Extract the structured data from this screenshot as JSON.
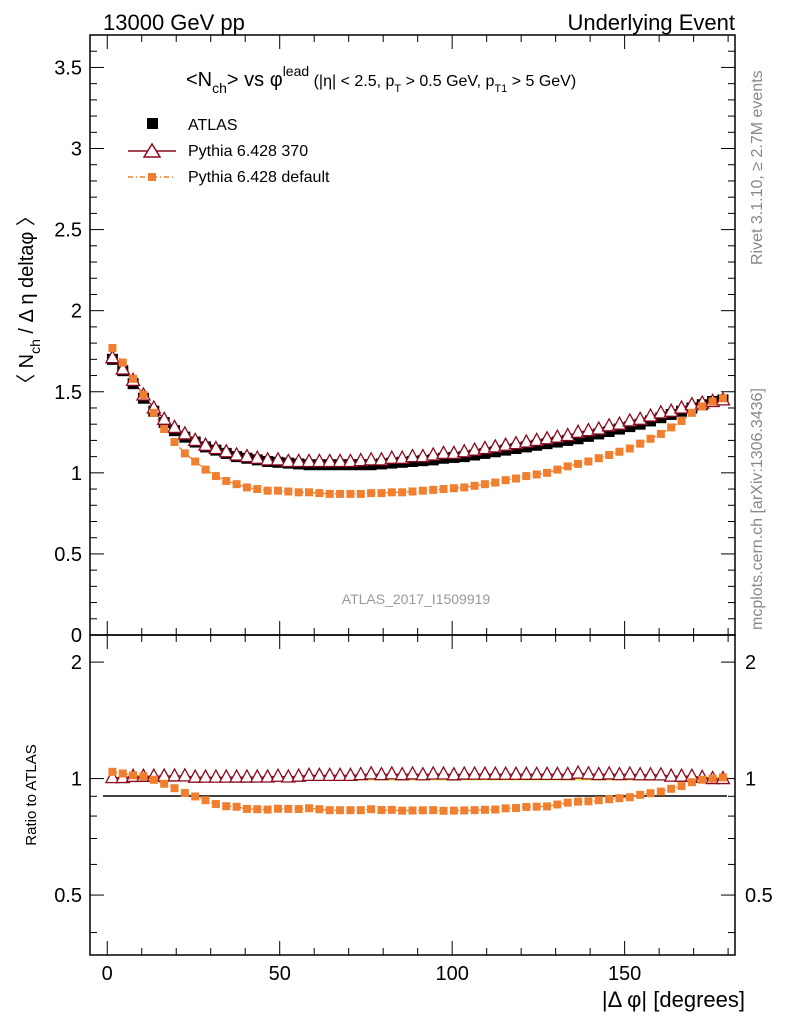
{
  "header": {
    "left": "13000 GeV pp",
    "right": "Underlying Event"
  },
  "side": {
    "rivet": "Rivet 3.1.10, ≥ 2.7M events",
    "mcplots": "mcplots.cern.ch [arXiv:1306.3436]"
  },
  "chart_data": {
    "type": "scatter",
    "title_parts": {
      "a": "<N",
      "a_sub": "ch",
      "b": "> vs φ",
      "b_sup": "lead",
      "c": " (|η| < 2.5, p",
      "c_sub": "T",
      "d": " > 0.5 GeV, p",
      "d_sub": "T1",
      "e": " > 5 GeV)"
    },
    "analysis_label": "ATLAS_2017_I1509919",
    "ylabel_parts": {
      "a": "〈 N",
      "a_sub": "ch",
      "b": " / Δ η deltaφ 〉"
    },
    "ratio_ylabel": "Ratio to ATLAS",
    "xlabel": "|Δ φ| [degrees]",
    "xlim": [
      -5,
      182
    ],
    "ylim": [
      0,
      3.7
    ],
    "ratio_ylim": [
      0.35,
      2.35
    ],
    "x_ticks": [
      "0",
      "50",
      "100",
      "150"
    ],
    "y_ticks": [
      "0",
      "0.5",
      "1",
      "1.5",
      "2",
      "2.5",
      "3",
      "3.5"
    ],
    "ratio_ticks": [
      "0.5",
      "1",
      "2"
    ],
    "legend": [
      {
        "name": "ATLAS",
        "color": "#000000",
        "marker": "square"
      },
      {
        "name": "Pythia 6.428 370",
        "color": "#8b0a1e",
        "marker": "triangle-open"
      },
      {
        "name": "Pythia 6.428 default",
        "color": "#f08030",
        "marker": "square-small"
      }
    ],
    "x": [
      1.5,
      4.5,
      7.5,
      10.5,
      13.5,
      16.5,
      19.5,
      22.5,
      25.5,
      28.5,
      31.5,
      34.5,
      37.5,
      40.5,
      43.5,
      46.5,
      49.5,
      52.5,
      55.5,
      58.5,
      61.5,
      64.5,
      67.5,
      70.5,
      73.5,
      76.5,
      79.5,
      82.5,
      85.5,
      88.5,
      91.5,
      94.5,
      97.5,
      100.5,
      103.5,
      106.5,
      109.5,
      112.5,
      115.5,
      118.5,
      121.5,
      124.5,
      127.5,
      130.5,
      133.5,
      136.5,
      139.5,
      142.5,
      145.5,
      148.5,
      151.5,
      154.5,
      157.5,
      160.5,
      163.5,
      166.5,
      169.5,
      172.5,
      175.5,
      178.5
    ],
    "series": [
      {
        "name": "ATLAS",
        "values": [
          1.7,
          1.63,
          1.55,
          1.46,
          1.38,
          1.31,
          1.26,
          1.22,
          1.19,
          1.16,
          1.14,
          1.12,
          1.1,
          1.09,
          1.08,
          1.07,
          1.065,
          1.06,
          1.055,
          1.05,
          1.05,
          1.05,
          1.05,
          1.05,
          1.05,
          1.05,
          1.055,
          1.06,
          1.065,
          1.07,
          1.075,
          1.08,
          1.09,
          1.095,
          1.1,
          1.11,
          1.12,
          1.13,
          1.14,
          1.15,
          1.16,
          1.17,
          1.18,
          1.19,
          1.2,
          1.21,
          1.225,
          1.24,
          1.255,
          1.27,
          1.285,
          1.3,
          1.32,
          1.34,
          1.36,
          1.38,
          1.4,
          1.42,
          1.44,
          1.45
        ]
      },
      {
        "name": "Pythia 6.428 370",
        "values": [
          1.71,
          1.64,
          1.57,
          1.48,
          1.4,
          1.33,
          1.28,
          1.24,
          1.2,
          1.17,
          1.15,
          1.13,
          1.11,
          1.1,
          1.09,
          1.08,
          1.08,
          1.07,
          1.07,
          1.07,
          1.07,
          1.07,
          1.07,
          1.07,
          1.075,
          1.08,
          1.08,
          1.09,
          1.09,
          1.1,
          1.1,
          1.11,
          1.12,
          1.12,
          1.13,
          1.14,
          1.15,
          1.16,
          1.17,
          1.18,
          1.19,
          1.2,
          1.21,
          1.22,
          1.23,
          1.25,
          1.26,
          1.27,
          1.29,
          1.3,
          1.32,
          1.33,
          1.35,
          1.37,
          1.38,
          1.4,
          1.42,
          1.43,
          1.44,
          1.45
        ]
      },
      {
        "name": "Pythia 6.428 default",
        "values": [
          1.77,
          1.68,
          1.58,
          1.48,
          1.37,
          1.27,
          1.19,
          1.12,
          1.07,
          1.02,
          0.98,
          0.95,
          0.93,
          0.91,
          0.9,
          0.89,
          0.89,
          0.885,
          0.88,
          0.88,
          0.875,
          0.87,
          0.87,
          0.87,
          0.87,
          0.875,
          0.875,
          0.88,
          0.88,
          0.885,
          0.89,
          0.895,
          0.9,
          0.905,
          0.91,
          0.92,
          0.93,
          0.94,
          0.955,
          0.965,
          0.98,
          0.99,
          1.0,
          1.02,
          1.04,
          1.055,
          1.07,
          1.09,
          1.11,
          1.13,
          1.15,
          1.18,
          1.21,
          1.24,
          1.28,
          1.32,
          1.37,
          1.41,
          1.44,
          1.46
        ]
      }
    ],
    "atlas_errors_last": 0.03,
    "ratio_band_color": "#e8ef60"
  }
}
